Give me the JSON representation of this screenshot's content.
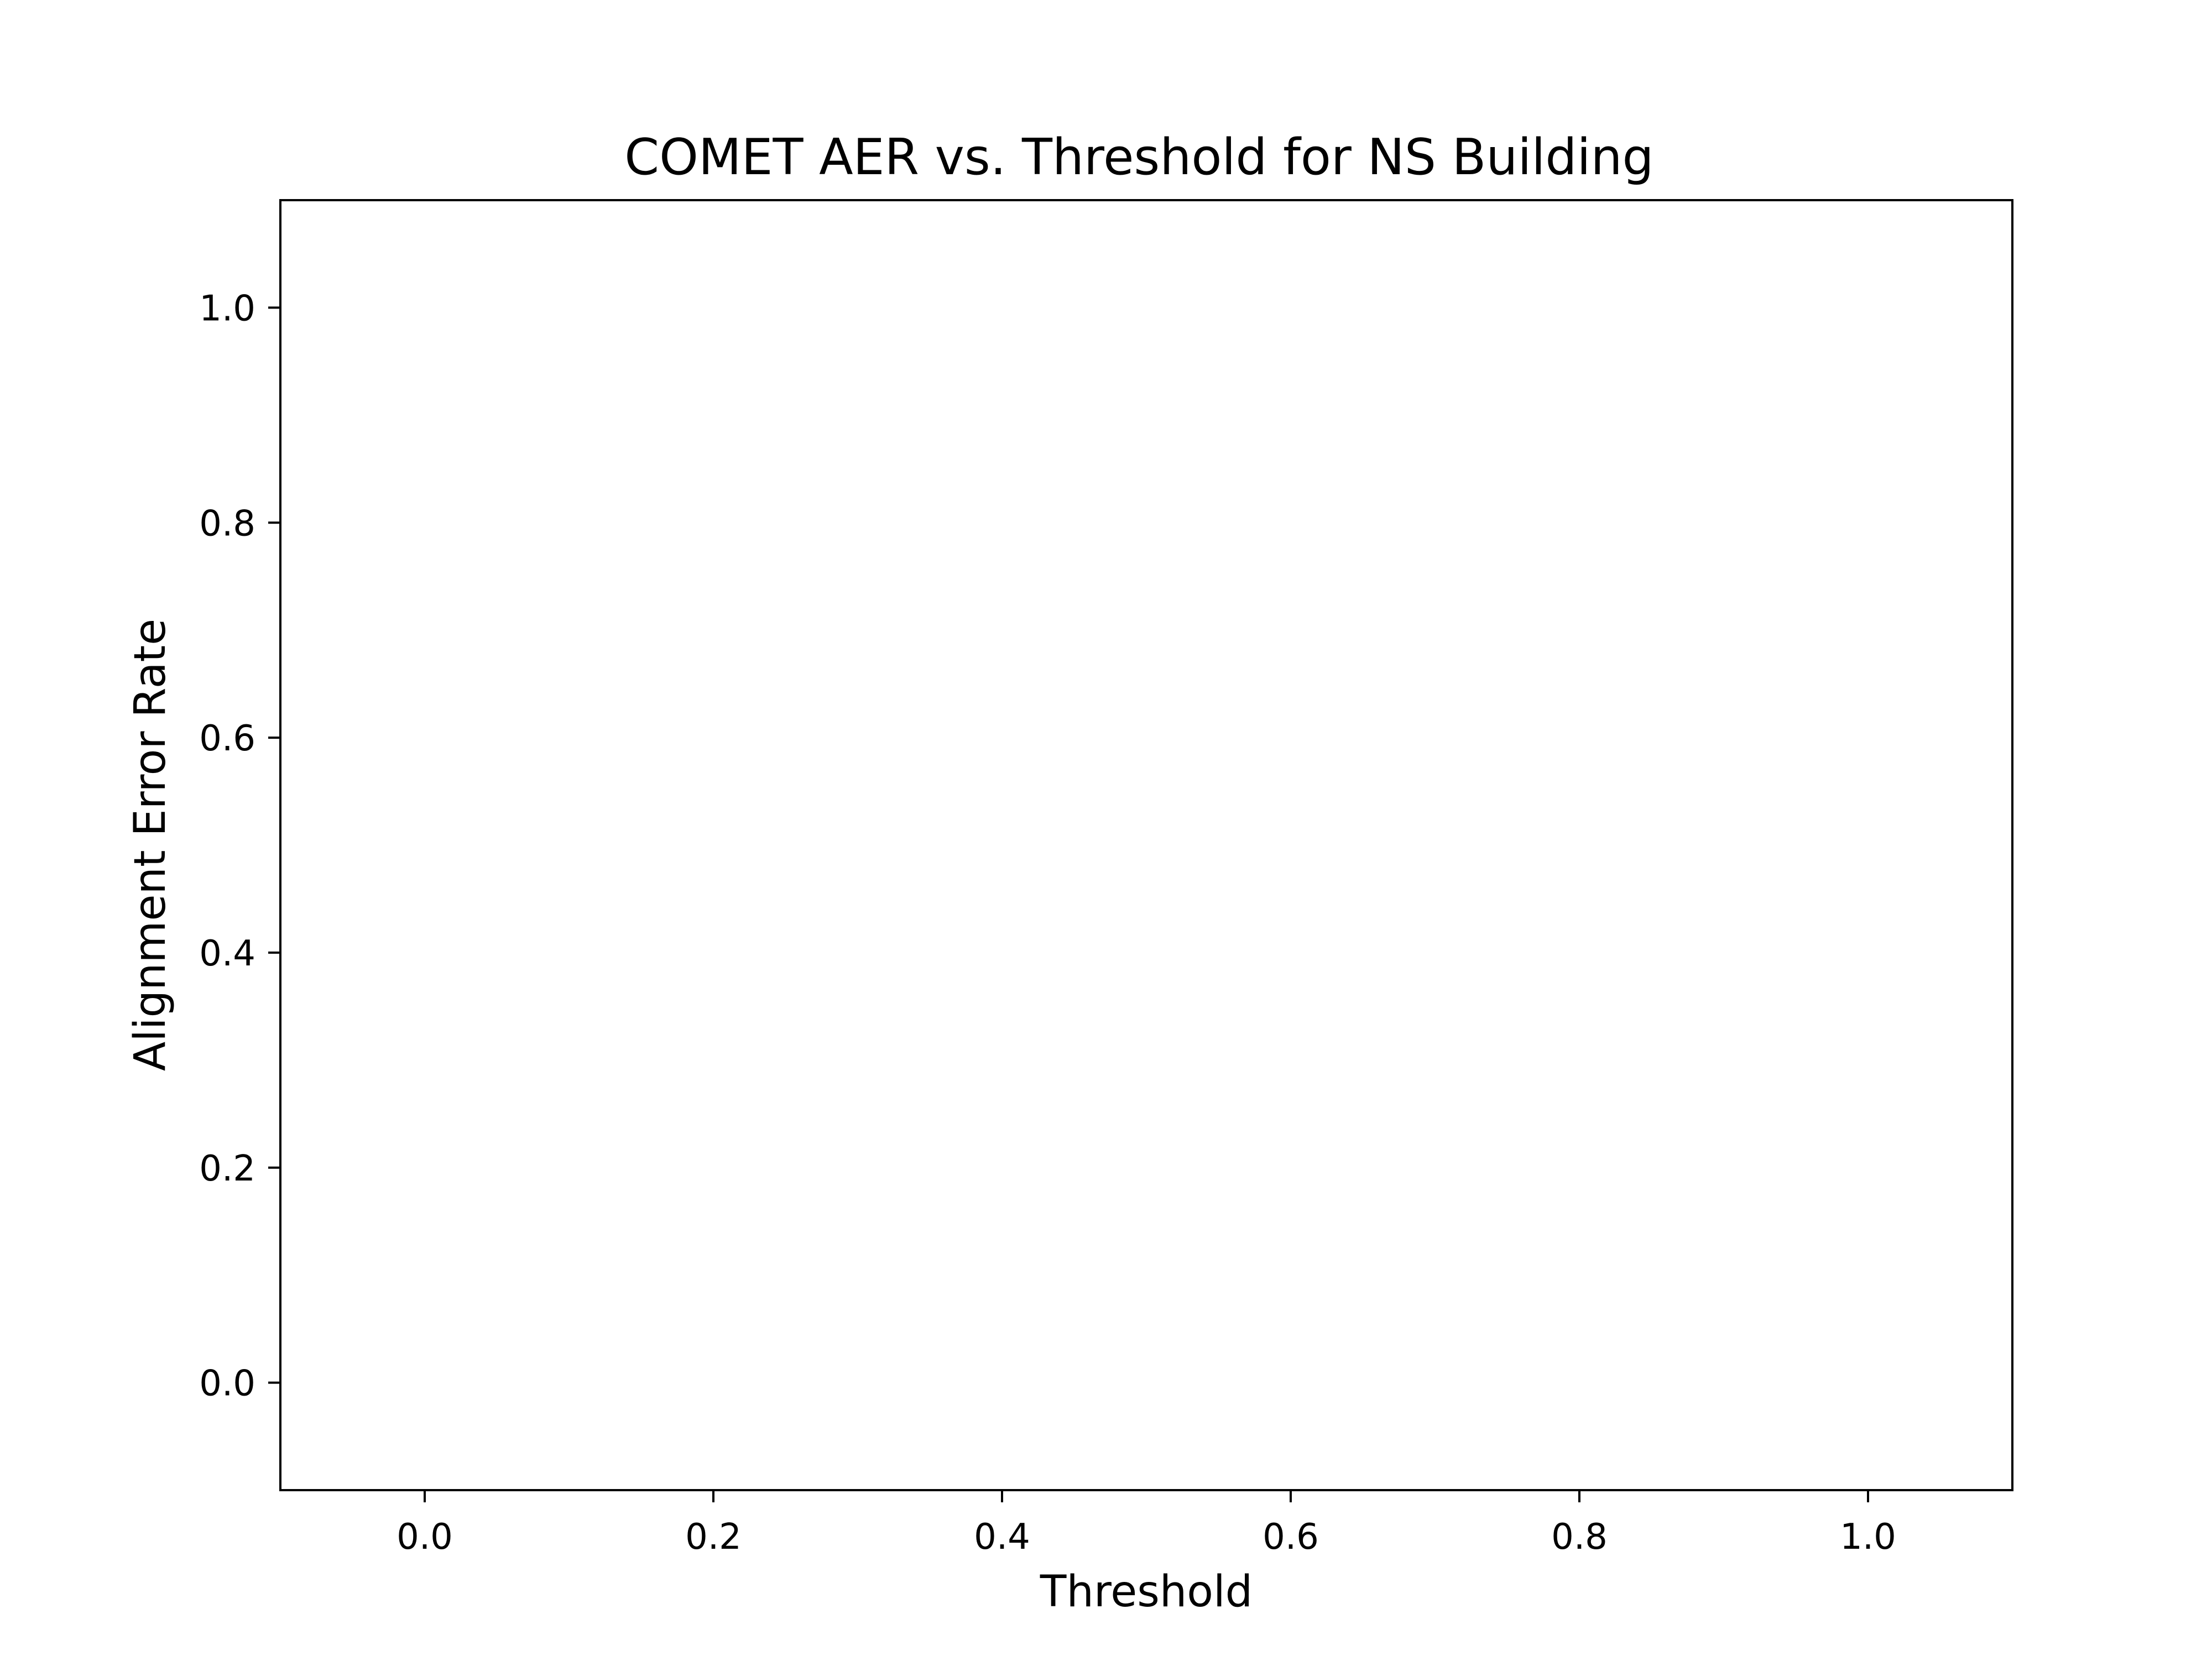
{
  "chart_data": {
    "type": "line",
    "title": "COMET AER vs. Threshold for NS Building",
    "xlabel": "Threshold",
    "ylabel": "Alignment Error Rate",
    "xlim": [
      -0.1,
      1.1
    ],
    "ylim": [
      -0.1,
      1.1
    ],
    "xticks": [
      0.0,
      0.2,
      0.4,
      0.6,
      0.8,
      1.0
    ],
    "xtick_labels": [
      "0.0",
      "0.2",
      "0.4",
      "0.6",
      "0.8",
      "1.0"
    ],
    "yticks": [
      0.0,
      0.2,
      0.4,
      0.6,
      0.8,
      1.0
    ],
    "ytick_labels": [
      "0.0",
      "0.2",
      "0.4",
      "0.6",
      "0.8",
      "1.0"
    ],
    "grid": false,
    "series": []
  },
  "colors": {
    "axes": "#000000",
    "background": "#ffffff"
  }
}
